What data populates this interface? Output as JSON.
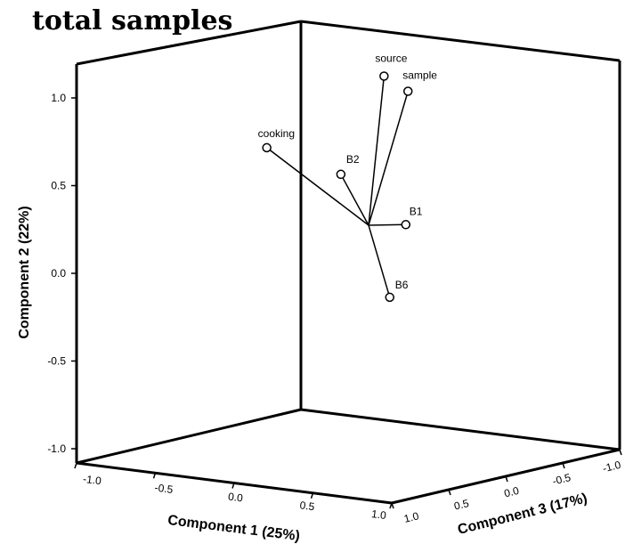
{
  "chart_data": {
    "type": "scatter",
    "title": "total samples",
    "xlabel": "Component 1 (25%)",
    "ylabel": "Component 2 (22%)",
    "zlabel": "Component 3 (17%)",
    "xlim": [
      -1.0,
      1.0
    ],
    "ylim": [
      -1.0,
      1.0
    ],
    "zlim": [
      -1.0,
      1.0
    ],
    "x_ticks": [
      "-1.0",
      "-0.5",
      "0.0",
      "0.5",
      "1.0"
    ],
    "y_ticks": [
      "-1.0",
      "-0.5",
      "0.0",
      "0.5",
      "1.0"
    ],
    "z_ticks": [
      "1.0",
      "0.5",
      "0.0",
      "-0.5",
      "-1.0"
    ],
    "grid": false,
    "points": [
      {
        "label": "source",
        "x": 0.15,
        "y": 0.85,
        "z": -0.05
      },
      {
        "label": "sample",
        "x": 0.25,
        "y": 0.75,
        "z": -0.25
      },
      {
        "label": "cooking",
        "x": -0.75,
        "y": 0.45,
        "z": 0.55
      },
      {
        "label": "B2",
        "x": -0.15,
        "y": 0.3,
        "z": 0.2
      },
      {
        "label": "B1",
        "x": 0.6,
        "y": 0.05,
        "z": 0.1
      },
      {
        "label": "B6",
        "x": 0.55,
        "y": -0.35,
        "z": 0.25
      }
    ]
  }
}
